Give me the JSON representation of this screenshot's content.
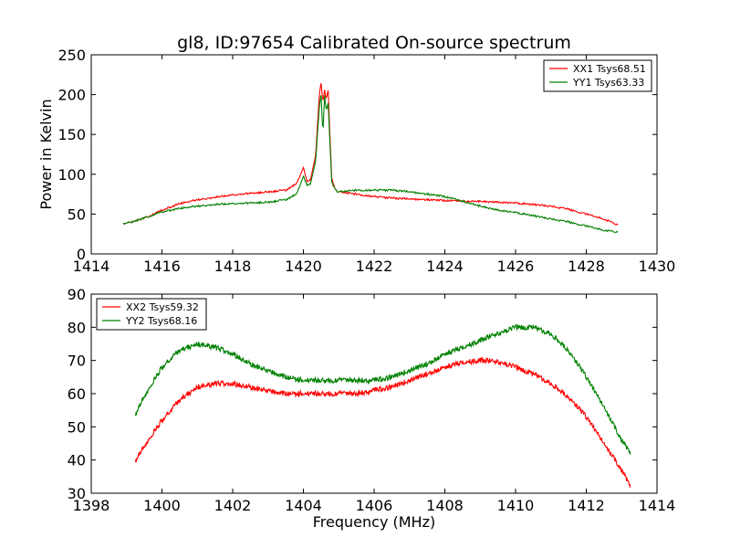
{
  "colors": {
    "xx": "#ff0000",
    "yy": "#008000",
    "axis": "#000000",
    "background": "#ffffff"
  },
  "chart_data": [
    {
      "type": "line",
      "title": "gl8, ID:97654 Calibrated On-source spectrum",
      "xlabel": "",
      "ylabel": "Power in Kelvin",
      "xlim": [
        1414,
        1430
      ],
      "ylim": [
        0,
        250
      ],
      "xticks": [
        "1414",
        "1416",
        "1418",
        "1420",
        "1422",
        "1424",
        "1426",
        "1428",
        "1430"
      ],
      "yticks": [
        "0",
        "50",
        "100",
        "150",
        "200",
        "250"
      ],
      "grid": false,
      "legend_position": "top-right",
      "series": [
        {
          "name": "XX1 Tsys68.51",
          "color": "#ff0000",
          "x": [
            1414.9,
            1415.5,
            1416.0,
            1416.5,
            1417.0,
            1417.5,
            1418.0,
            1418.5,
            1419.0,
            1419.5,
            1419.8,
            1420.0,
            1420.1,
            1420.2,
            1420.35,
            1420.45,
            1420.5,
            1420.55,
            1420.6,
            1420.65,
            1420.7,
            1420.75,
            1420.8,
            1420.9,
            1421.0,
            1421.5,
            1422.0,
            1422.5,
            1423.0,
            1423.5,
            1424.0,
            1424.5,
            1425.0,
            1425.5,
            1426.0,
            1426.5,
            1427.0,
            1427.5,
            1428.0,
            1428.5,
            1428.9
          ],
          "y": [
            37,
            45,
            55,
            63,
            68,
            71,
            74,
            76,
            78,
            80,
            88,
            108,
            92,
            93,
            125,
            200,
            215,
            190,
            205,
            195,
            206,
            150,
            95,
            80,
            78,
            75,
            72,
            70,
            69,
            68,
            67,
            66,
            66,
            65,
            64,
            62,
            60,
            56,
            50,
            44,
            36
          ]
        },
        {
          "name": "YY1 Tsys63.33",
          "color": "#008000",
          "x": [
            1414.9,
            1415.5,
            1416.0,
            1416.5,
            1417.0,
            1417.5,
            1418.0,
            1418.5,
            1419.0,
            1419.5,
            1419.8,
            1420.0,
            1420.1,
            1420.2,
            1420.35,
            1420.45,
            1420.5,
            1420.55,
            1420.6,
            1420.65,
            1420.7,
            1420.75,
            1420.8,
            1420.9,
            1421.0,
            1421.5,
            1422.0,
            1422.5,
            1423.0,
            1423.5,
            1424.0,
            1424.5,
            1425.0,
            1425.5,
            1426.0,
            1426.5,
            1427.0,
            1427.5,
            1428.0,
            1428.5,
            1428.9
          ],
          "y": [
            37,
            45,
            53,
            57,
            60,
            62,
            63,
            64,
            65,
            68,
            75,
            97,
            87,
            88,
            118,
            185,
            200,
            150,
            198,
            180,
            190,
            140,
            90,
            80,
            78,
            80,
            80,
            80,
            78,
            75,
            72,
            66,
            60,
            55,
            52,
            48,
            44,
            40,
            35,
            30,
            27
          ]
        }
      ]
    },
    {
      "type": "line",
      "title": "",
      "xlabel": "Frequency (MHz)",
      "ylabel": "",
      "xlim": [
        1398,
        1414
      ],
      "ylim": [
        30,
        90
      ],
      "xticks": [
        "1398",
        "1400",
        "1402",
        "1404",
        "1406",
        "1408",
        "1410",
        "1412",
        "1414"
      ],
      "yticks": [
        "30",
        "40",
        "50",
        "60",
        "70",
        "80",
        "90"
      ],
      "grid": false,
      "legend_position": "top-left",
      "series": [
        {
          "name": "XX2 Tsys59.32",
          "color": "#ff0000",
          "x": [
            1399.25,
            1399.5,
            1400.0,
            1400.5,
            1401.0,
            1401.5,
            1402.0,
            1402.5,
            1403.0,
            1403.5,
            1404.0,
            1404.5,
            1405.0,
            1405.5,
            1406.0,
            1406.5,
            1407.0,
            1407.5,
            1408.0,
            1408.5,
            1409.0,
            1409.5,
            1410.0,
            1410.5,
            1411.0,
            1411.5,
            1412.0,
            1412.5,
            1413.0,
            1413.25
          ],
          "y": [
            40,
            44,
            52,
            58,
            62,
            63,
            63,
            62,
            61,
            60,
            60,
            60,
            60,
            60,
            61,
            62,
            64,
            66,
            68,
            69.5,
            70,
            69.5,
            68,
            66,
            63,
            59,
            53,
            45,
            37,
            32
          ]
        },
        {
          "name": "YY2 Tsys68.16",
          "color": "#008000",
          "x": [
            1399.25,
            1399.5,
            1400.0,
            1400.5,
            1401.0,
            1401.5,
            1402.0,
            1402.5,
            1403.0,
            1403.5,
            1404.0,
            1404.5,
            1405.0,
            1405.5,
            1406.0,
            1406.5,
            1407.0,
            1407.5,
            1408.0,
            1408.5,
            1409.0,
            1409.5,
            1410.0,
            1410.5,
            1411.0,
            1411.5,
            1412.0,
            1412.5,
            1413.0,
            1413.25
          ],
          "y": [
            54,
            59,
            68,
            73,
            75,
            74,
            72,
            69,
            67,
            65,
            64,
            64,
            64,
            64,
            64,
            65,
            67,
            69,
            72,
            74,
            76,
            78,
            80,
            80,
            78,
            73,
            65,
            56,
            46,
            42
          ]
        }
      ]
    }
  ]
}
